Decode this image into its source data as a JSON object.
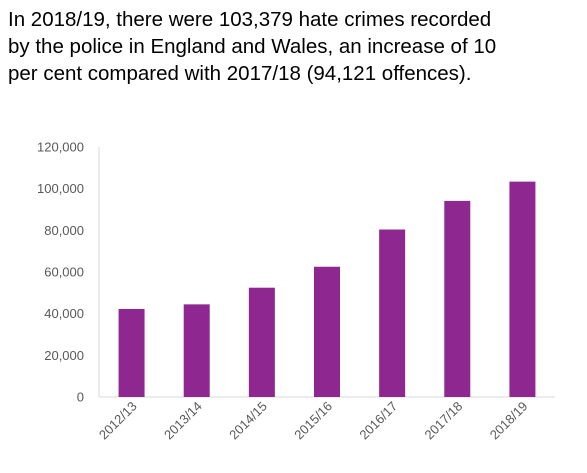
{
  "headline": {
    "lines": [
      "In 2018/19, there were 103,379 hate crimes recorded",
      "by the police in England and Wales, an increase of 10",
      "per cent compared with 2017/18 (94,121 offences)."
    ]
  },
  "chart_data": {
    "type": "bar",
    "categories": [
      "2012/13",
      "2013/14",
      "2014/15",
      "2015/16",
      "2016/17",
      "2017/18",
      "2018/19"
    ],
    "values": [
      42255,
      44471,
      52465,
      62518,
      80393,
      94121,
      103379
    ],
    "yticks": [
      "0",
      "20,000",
      "40,000",
      "60,000",
      "80,000",
      "100,000",
      "120,000"
    ],
    "ylim": [
      0,
      120000
    ],
    "title": "",
    "xlabel": "",
    "ylabel": "",
    "legend": "none",
    "grid": false,
    "bar_color": "#8E2890",
    "axis_color": "#D9D9D9"
  }
}
